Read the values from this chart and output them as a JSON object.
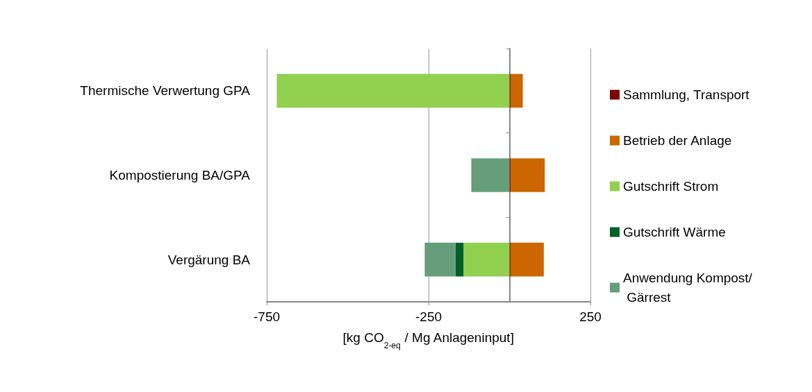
{
  "chart_data": {
    "type": "bar",
    "orientation": "horizontal",
    "stacked": true,
    "categories": [
      "Thermische Verwertung GPA",
      "Kompostierung BA/GPA",
      "Vergärung BA"
    ],
    "xlabel": "[kg CO$_{2-eq}$ / Mg Anlageninput]",
    "series": [
      {
        "name": "Sammlung, Transport",
        "color": "#7f0000",
        "values": [
          3,
          3,
          3
        ]
      },
      {
        "name": "Betrieb der Anlage",
        "color": "#cc6600",
        "values": [
          38,
          106,
          103
        ]
      },
      {
        "name": "Gutschrift Strom",
        "color": "#92d050",
        "values": [
          -719,
          0,
          -142
        ]
      },
      {
        "name": "Gutschrift Wärme",
        "color": "#00602a",
        "values": [
          0,
          0,
          -25
        ]
      },
      {
        "name": "Anwendung Kompost/ Gärrest",
        "color": "#669e7c",
        "values": [
          0,
          -118,
          -95
        ]
      }
    ],
    "xlim": [
      -750,
      250
    ],
    "xticks": [
      -750,
      -250,
      250
    ],
    "grid": "x",
    "legend": "right"
  }
}
